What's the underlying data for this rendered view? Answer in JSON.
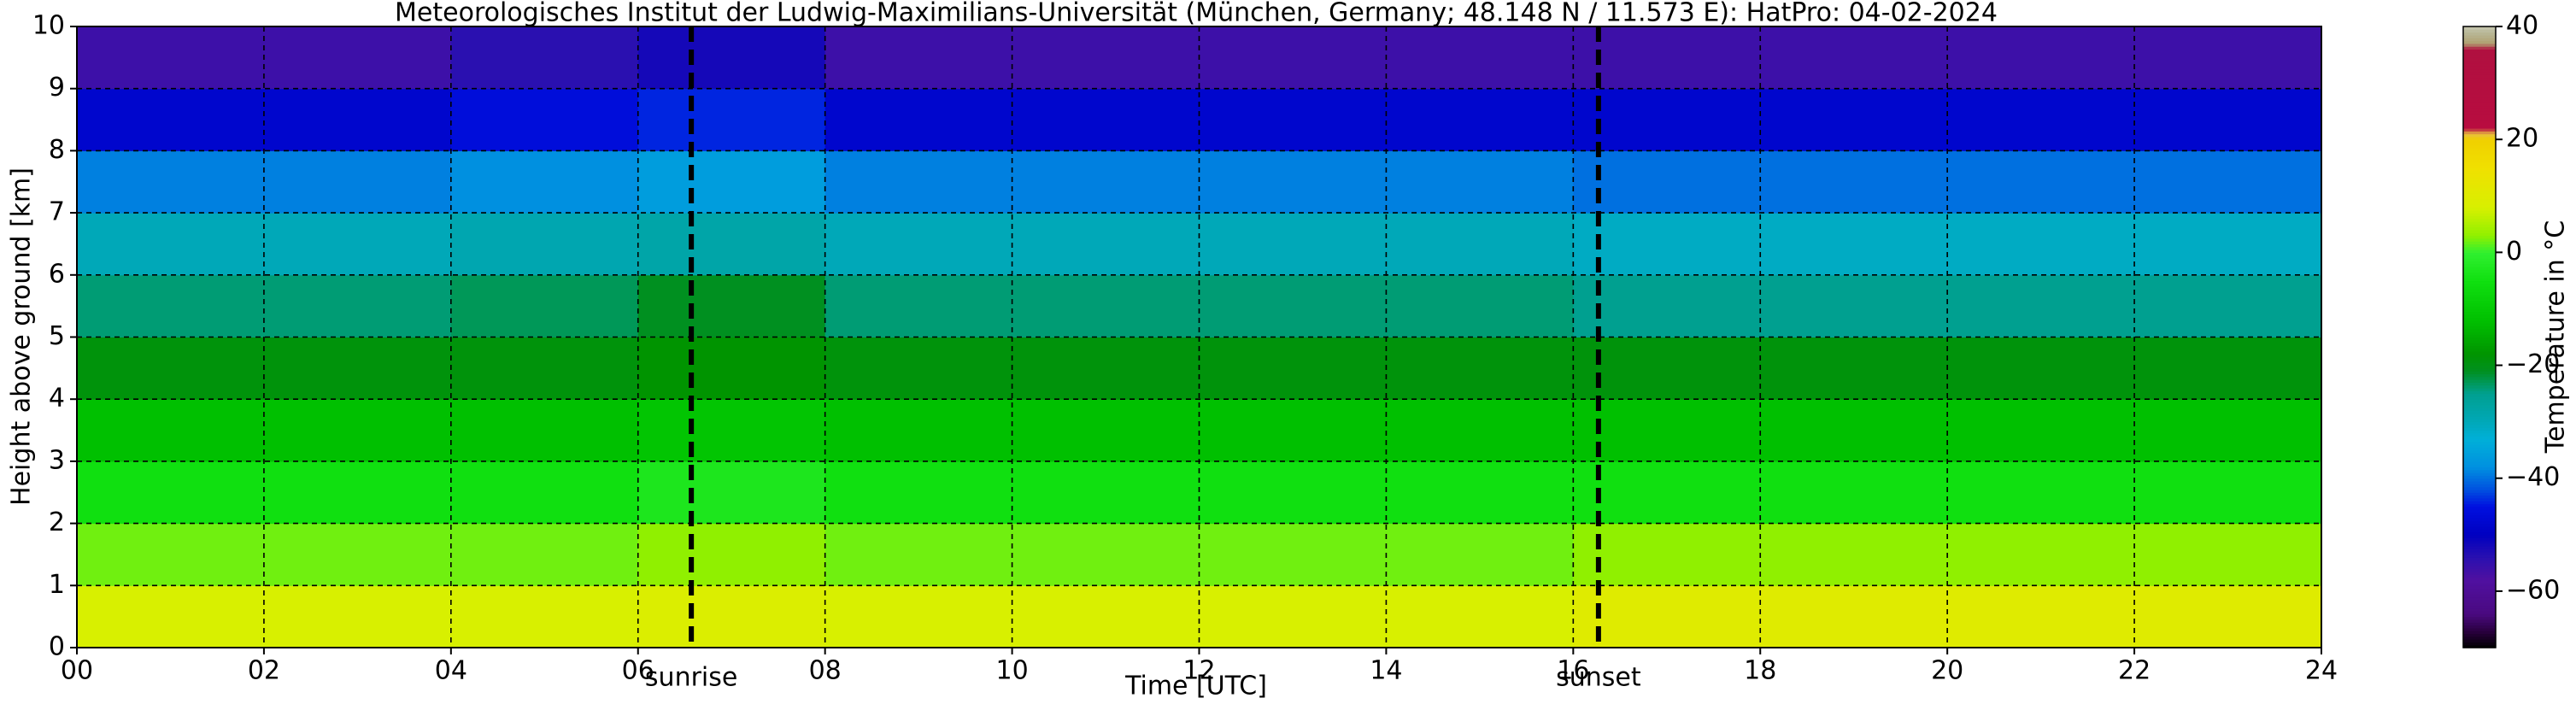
{
  "chart_data": {
    "type": "heatmap",
    "title": "Meteorologisches Institut der Ludwig-Maximilians-Universität (München, Germany; 48.148 N / 11.573 E):    HatPro: 04-02-2024",
    "xlabel": "Time [UTC]",
    "ylabel": "Height above ground [km]",
    "colorbar_label": "Temperature in °C",
    "x": [
      1,
      3,
      5,
      7,
      9,
      11,
      13,
      15,
      17,
      19,
      21,
      23
    ],
    "y": [
      0.5,
      1.5,
      2.5,
      3.5,
      4.5,
      5.5,
      6.5,
      7.5,
      8.5,
      9.5
    ],
    "values": [
      [
        8,
        8,
        8,
        9,
        8,
        8,
        8,
        8,
        10,
        10,
        10,
        10
      ],
      [
        2,
        2,
        2,
        3,
        2,
        2,
        2,
        2,
        3,
        3,
        3,
        3
      ],
      [
        -5,
        -5,
        -5,
        -3,
        -5,
        -5,
        -5,
        -5,
        -5,
        -5,
        -5,
        -5
      ],
      [
        -12,
        -12,
        -12,
        -11,
        -12,
        -12,
        -12,
        -12,
        -12,
        -12,
        -12,
        -12
      ],
      [
        -19,
        -19,
        -19,
        -18,
        -19,
        -19,
        -19,
        -19,
        -19,
        -19,
        -19,
        -19
      ],
      [
        -24,
        -24,
        -23,
        -21,
        -24,
        -24,
        -24,
        -24,
        -25,
        -25,
        -25,
        -25
      ],
      [
        -30,
        -30,
        -29,
        -28,
        -30,
        -30,
        -30,
        -30,
        -31,
        -31,
        -31,
        -31
      ],
      [
        -39,
        -39,
        -38,
        -36,
        -39,
        -39,
        -39,
        -39,
        -40,
        -40,
        -40,
        -40
      ],
      [
        -48,
        -48,
        -46,
        -44,
        -48,
        -48,
        -48,
        -48,
        -48,
        -48,
        -48,
        -48
      ],
      [
        -56,
        -56,
        -54,
        -52,
        -56,
        -56,
        -56,
        -56,
        -56,
        -56,
        -56,
        -56
      ]
    ],
    "xlim": [
      0,
      24
    ],
    "xticks": [
      {
        "value": 0,
        "label": "00"
      },
      {
        "value": 2,
        "label": "02"
      },
      {
        "value": 4,
        "label": "04"
      },
      {
        "value": 6,
        "label": "06"
      },
      {
        "value": 8,
        "label": "08"
      },
      10,
      12,
      14,
      16,
      18,
      20,
      22,
      24
    ],
    "ylim": [
      0,
      10
    ],
    "yticks": [
      0,
      1,
      2,
      3,
      4,
      5,
      6,
      7,
      8,
      9,
      10
    ],
    "clim": [
      -70,
      40
    ],
    "cticks": [
      {
        "value": -60,
        "label": "−60"
      },
      {
        "value": -40,
        "label": "−40"
      },
      {
        "value": -20,
        "label": "−20"
      },
      0,
      20,
      40
    ],
    "grid": true,
    "annotations": [
      {
        "text": "sunrise",
        "x": 6.57
      },
      {
        "text": "sunset",
        "x": 16.27
      }
    ],
    "colorscale": [
      [
        -70,
        "#000000"
      ],
      [
        -67,
        "#2a0040"
      ],
      [
        -64,
        "#4a0a80"
      ],
      [
        -58,
        "#5010a0"
      ],
      [
        -54,
        "#2a10b0"
      ],
      [
        -50,
        "#0000c0"
      ],
      [
        -45,
        "#0010e0"
      ],
      [
        -42,
        "#0050e0"
      ],
      [
        -38,
        "#0090e0"
      ],
      [
        -33,
        "#00b0d8"
      ],
      [
        -30,
        "#00a8b8"
      ],
      [
        -25,
        "#00a090"
      ],
      [
        -21,
        "#009020"
      ],
      [
        -18,
        "#009400"
      ],
      [
        -12,
        "#00c000"
      ],
      [
        -5,
        "#10e010"
      ],
      [
        0,
        "#30f030"
      ],
      [
        3,
        "#90f000"
      ],
      [
        8,
        "#d8f000"
      ],
      [
        15,
        "#f0e000"
      ],
      [
        20,
        "#f0d000"
      ],
      [
        21,
        "#e8c040"
      ],
      [
        22,
        "#b80c40"
      ],
      [
        36,
        "#b01040"
      ],
      [
        37,
        "#b0a070"
      ],
      [
        39,
        "#b8b898"
      ],
      [
        40,
        "#c8c8b0"
      ]
    ]
  }
}
